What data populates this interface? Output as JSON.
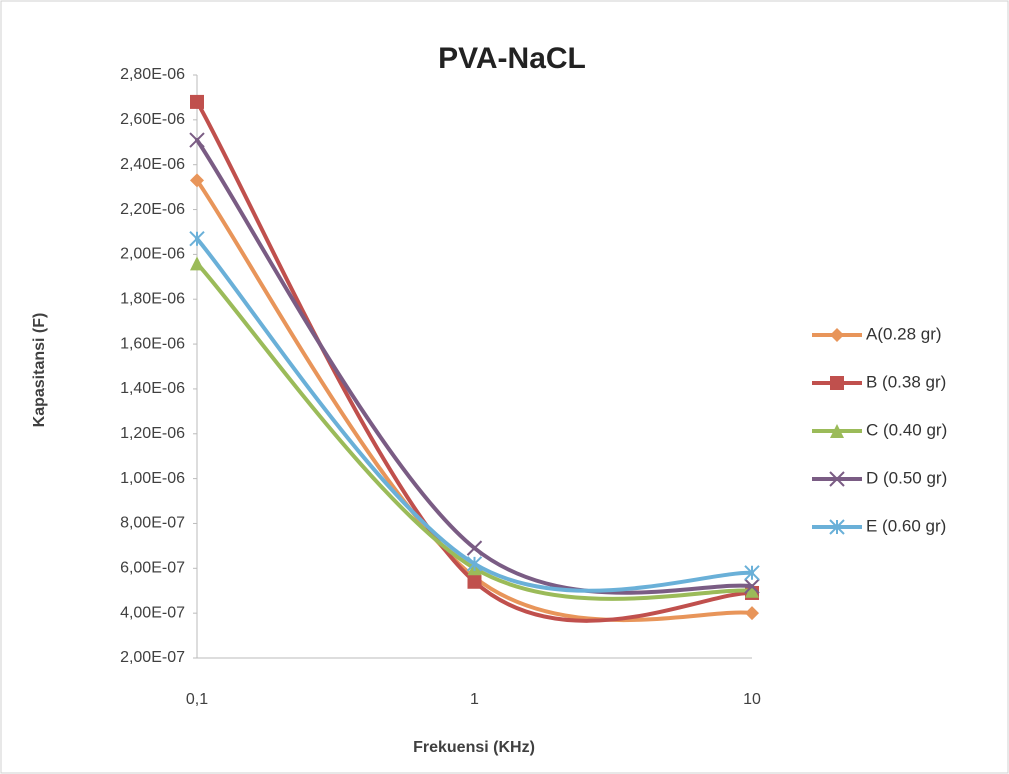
{
  "chart_data": {
    "type": "line",
    "title": "PVA-NaCL",
    "x_label": "Frekuensi (KHz)",
    "y_label": "Kapasitansi (F)",
    "categories": [
      "0,1",
      "1",
      "10"
    ],
    "ylim": [
      2e-07,
      2.8e-06
    ],
    "yticks": [
      {
        "value": 2e-07,
        "label": "2,00E-07"
      },
      {
        "value": 4e-07,
        "label": "4,00E-07"
      },
      {
        "value": 6e-07,
        "label": "6,00E-07"
      },
      {
        "value": 8e-07,
        "label": "8,00E-07"
      },
      {
        "value": 1e-06,
        "label": "1,00E-06"
      },
      {
        "value": 1.2e-06,
        "label": "1,20E-06"
      },
      {
        "value": 1.4e-06,
        "label": "1,40E-06"
      },
      {
        "value": 1.6e-06,
        "label": "1,60E-06"
      },
      {
        "value": 1.8e-06,
        "label": "1,80E-06"
      },
      {
        "value": 2e-06,
        "label": "2,00E-06"
      },
      {
        "value": 2.2e-06,
        "label": "2,20E-06"
      },
      {
        "value": 2.4e-06,
        "label": "2,40E-06"
      },
      {
        "value": 2.6e-06,
        "label": "2,60E-06"
      },
      {
        "value": 2.8e-06,
        "label": "2,80E-06"
      }
    ],
    "smooth": true,
    "legend": "right",
    "series": [
      {
        "name": "A(0.28 gr)",
        "color": "#e8955a",
        "marker": "diamond",
        "values": [
          2.33e-06,
          5.6e-07,
          4e-07
        ]
      },
      {
        "name": "B (0.38 gr)",
        "color": "#c0504d",
        "marker": "square",
        "values": [
          2.68e-06,
          5.4e-07,
          4.9e-07
        ]
      },
      {
        "name": "C (0.40 gr)",
        "color": "#9bbb59",
        "marker": "triangle",
        "values": [
          1.96e-06,
          6e-07,
          5e-07
        ]
      },
      {
        "name": "D (0.50 gr)",
        "color": "#7a5c84",
        "marker": "x",
        "values": [
          2.51e-06,
          6.9e-07,
          5.2e-07
        ]
      },
      {
        "name": "E (0.60 gr)",
        "color": "#6ab0d8",
        "marker": "star",
        "values": [
          2.07e-06,
          6.2e-07,
          5.8e-07
        ]
      }
    ]
  }
}
